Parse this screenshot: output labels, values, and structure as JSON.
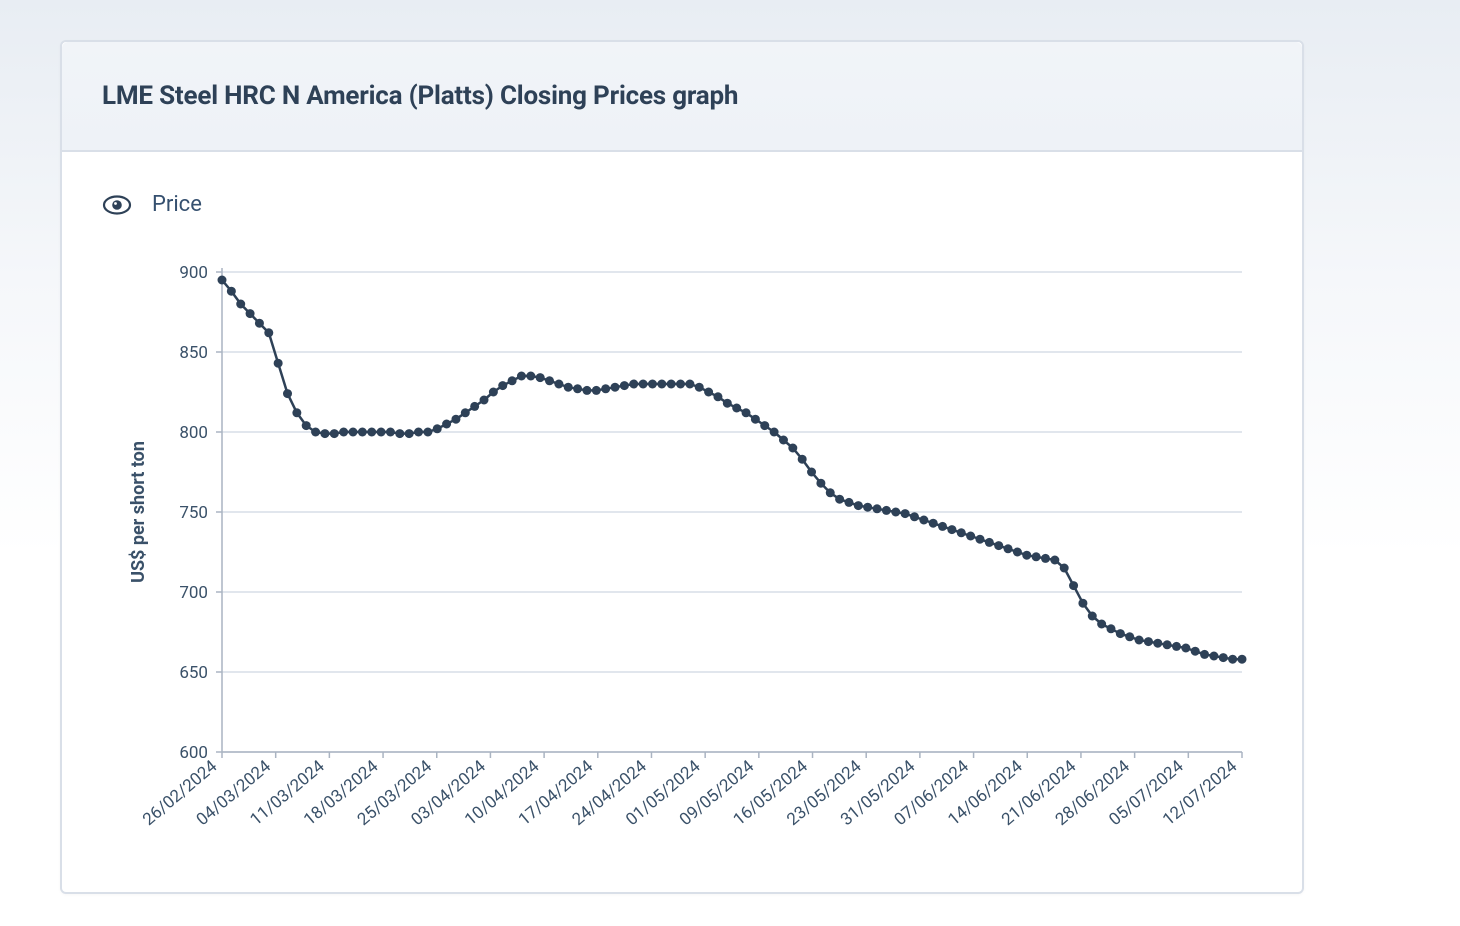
{
  "card": {
    "title": "LME Steel HRC N America (Platts) Closing Prices graph"
  },
  "legend": {
    "series_label": "Price"
  },
  "chart": {
    "type": "line",
    "y_axis_label": "US$ per short ton",
    "y_axis_label_fontsize": 18,
    "y_axis_label_fontweight": 700,
    "ylim": [
      600,
      900
    ],
    "ytick_step": 50,
    "yticks": [
      600,
      650,
      700,
      750,
      800,
      850,
      900
    ],
    "x_tick_labels": [
      "26/02/2024",
      "04/03/2024",
      "11/03/2024",
      "18/03/2024",
      "25/03/2024",
      "03/04/2024",
      "10/04/2024",
      "17/04/2024",
      "24/04/2024",
      "01/05/2024",
      "09/05/2024",
      "16/05/2024",
      "23/05/2024",
      "31/05/2024",
      "07/06/2024",
      "14/06/2024",
      "21/06/2024",
      "28/06/2024",
      "05/07/2024",
      "12/07/2024"
    ],
    "tick_fontsize": 17,
    "tick_color": "#3a5169",
    "grid_color": "#d7dee7",
    "axis_line_color": "#aab4c2",
    "background_color": "#ffffff",
    "series": {
      "name": "Price",
      "line_color": "#2e4157",
      "line_width": 2.5,
      "marker_color": "#2e4157",
      "marker_radius": 4.5,
      "values": [
        895,
        888,
        880,
        874,
        868,
        862,
        843,
        824,
        812,
        804,
        800,
        799,
        799,
        800,
        800,
        800,
        800,
        800,
        800,
        799,
        799,
        800,
        800,
        802,
        805,
        808,
        812,
        816,
        820,
        825,
        829,
        832,
        835,
        835,
        834,
        832,
        830,
        828,
        827,
        826,
        826,
        827,
        828,
        829,
        830,
        830,
        830,
        830,
        830,
        830,
        830,
        828,
        825,
        822,
        818,
        815,
        812,
        808,
        804,
        800,
        795,
        790,
        783,
        775,
        768,
        762,
        758,
        756,
        754,
        753,
        752,
        751,
        750,
        749,
        747,
        745,
        743,
        741,
        739,
        737,
        735,
        733,
        731,
        729,
        727,
        725,
        723,
        722,
        721,
        720,
        715,
        704,
        693,
        685,
        680,
        677,
        674,
        672,
        670,
        669,
        668,
        667,
        666,
        665,
        663,
        661,
        660,
        659,
        658,
        658
      ]
    }
  }
}
